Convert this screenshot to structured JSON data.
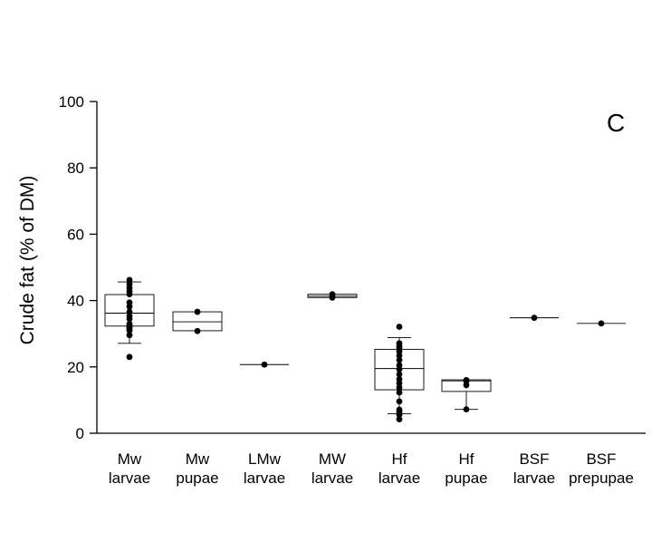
{
  "chart_data": {
    "type": "box",
    "ylabel": "Crude fat (% of DM)",
    "xlabel": "",
    "panel_label": "C",
    "ylim": [
      0,
      100
    ],
    "yticks": [
      0,
      20,
      40,
      60,
      80,
      100
    ],
    "grid": false,
    "categories": [
      {
        "line1": "Mw",
        "line2": "larvae"
      },
      {
        "line1": "Mw",
        "line2": "pupae"
      },
      {
        "line1": "LMw",
        "line2": "larvae"
      },
      {
        "line1": "MW",
        "line2": "larvae"
      },
      {
        "line1": "Hf",
        "line2": "larvae"
      },
      {
        "line1": "Hf",
        "line2": "pupae"
      },
      {
        "line1": "BSF",
        "line2": "larvae"
      },
      {
        "line1": "BSF",
        "line2": "prepupae"
      }
    ],
    "boxes": [
      {
        "q1": 32.3,
        "median": 36.2,
        "q3": 41.8,
        "whisker_low": 27.1,
        "whisker_high": 45.6,
        "points": [
          23.0,
          29.6,
          31.0,
          31.4,
          31.9,
          32.3,
          33.0,
          34.5,
          35.3,
          36.6,
          38.2,
          39.4,
          41.9,
          42.8,
          43.8,
          44.9,
          46.2
        ]
      },
      {
        "q1": 30.9,
        "median": 33.6,
        "q3": 36.6,
        "whisker_low": null,
        "whisker_high": null,
        "points": [
          30.8,
          36.6
        ]
      },
      {
        "q1": 20.7,
        "median": 20.7,
        "q3": 20.7,
        "whisker_low": null,
        "whisker_high": null,
        "points": [
          20.7
        ]
      },
      {
        "q1": 40.9,
        "median": 41.3,
        "q3": 41.9,
        "whisker_low": null,
        "whisker_high": null,
        "points": [
          40.9,
          41.3,
          41.9
        ]
      },
      {
        "q1": 13.1,
        "median": 19.5,
        "q3": 25.3,
        "whisker_low": 5.9,
        "whisker_high": 28.8,
        "points": [
          4.2,
          5.6,
          6.4,
          7.1,
          9.6,
          12.3,
          13.8,
          15.1,
          16.3,
          17.8,
          19.3,
          20.5,
          22.1,
          23.4,
          24.7,
          25.7,
          26.3,
          27.1,
          32.1
        ]
      },
      {
        "q1": 12.6,
        "median": 15.8,
        "q3": 16.1,
        "whisker_low": 7.2,
        "whisker_high": null,
        "points": [
          7.2,
          14.5,
          15.7,
          16.0
        ]
      },
      {
        "q1": 34.8,
        "median": 34.8,
        "q3": 34.8,
        "whisker_low": null,
        "whisker_high": null,
        "points": [
          34.8
        ]
      },
      {
        "q1": 33.1,
        "median": 33.1,
        "q3": 33.1,
        "whisker_low": null,
        "whisker_high": null,
        "points": [
          33.1
        ]
      }
    ]
  }
}
